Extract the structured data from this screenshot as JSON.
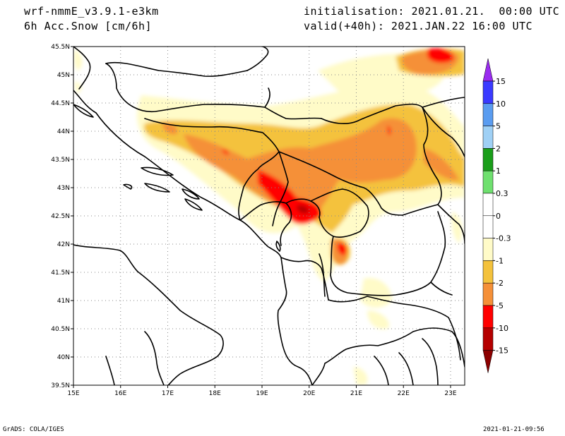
{
  "header": {
    "model": "wrf-nmmE_v3.9.1-e3km",
    "field": "6h Acc.Snow [cm/6h]",
    "initialisation": "initialisation: 2021.01.21.  00:00 UTC",
    "valid": "valid(+40h): 2021.JAN.22 16:00 UTC"
  },
  "footer": {
    "credit": "GrADS: COLA/IGES",
    "timestamp": "2021-01-21-09:56"
  },
  "map": {
    "lon_range": [
      15,
      23.3
    ],
    "lat_range": [
      39.5,
      45.5
    ],
    "lon_ticks": [
      "15E",
      "16E",
      "17E",
      "18E",
      "19E",
      "20E",
      "21E",
      "22E",
      "23E"
    ],
    "lat_ticks": [
      "39.5N",
      "40N",
      "40.5N",
      "41N",
      "41.5N",
      "42N",
      "42.5N",
      "43N",
      "43.5N",
      "44N",
      "44.5N",
      "45N",
      "45.5N"
    ]
  },
  "colorbar": {
    "labels": [
      "15",
      "10",
      "5",
      "2",
      "1",
      "0.3",
      "0",
      "-0.3",
      "-1",
      "-2",
      "-5",
      "-10",
      "-15"
    ],
    "colors": [
      "#3a3aff",
      "#5a9cf0",
      "#9fd0f5",
      "#1a9e1a",
      "#6fe06f",
      "#ffffff",
      "#ffffff",
      "#fffbc8",
      "#f4c23c",
      "#f59038",
      "#ff0000",
      "#b50000",
      "#a00000"
    ],
    "top_arrow_color": "#9a2cf0",
    "bottom_arrow_color": "#8c0000"
  }
}
